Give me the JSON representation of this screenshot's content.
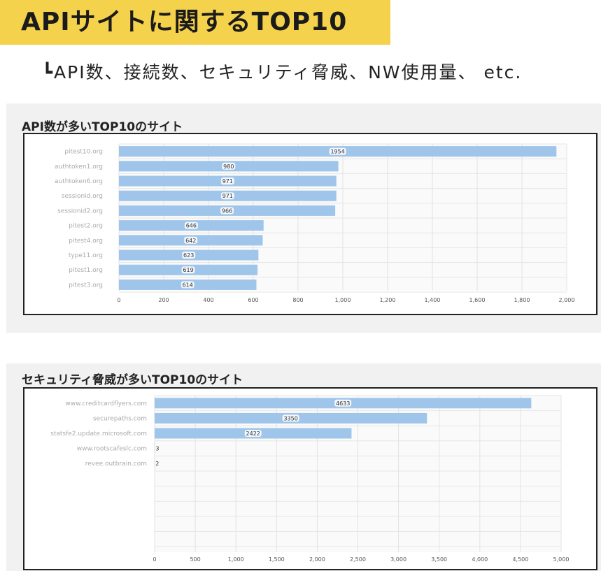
{
  "header": {
    "title": "APIサイトに関するTOP10",
    "subtitle": "┗API数、接続数、セキュリティ脅威、NW使用量、 etc."
  },
  "colors": {
    "banner": "#f5d24b",
    "bar": "#9fc5ea",
    "panel_bg": "#f1f1f1"
  },
  "chart_data": [
    {
      "type": "bar",
      "orientation": "horizontal",
      "title": "API数が多いTOP10のサイト",
      "categories": [
        "pitest10.org",
        "authtoken1.org",
        "authtoken6.org",
        "sessionid.org",
        "sessionid2.org",
        "pitest2.org",
        "pitest4.org",
        "type11.org",
        "pitest1.org",
        "pitest3.org"
      ],
      "values": [
        1954,
        980,
        971,
        971,
        966,
        646,
        642,
        623,
        619,
        614
      ],
      "data_labels": [
        "1954",
        "980",
        "971",
        "971",
        "966",
        "646",
        "642",
        "623",
        "619",
        "614"
      ],
      "xlim": [
        0,
        2000
      ],
      "x_ticks": [
        0,
        200,
        400,
        600,
        800,
        1000,
        1200,
        1400,
        1600,
        1800,
        2000
      ],
      "x_tick_labels": [
        "0",
        "200",
        "400",
        "600",
        "800",
        "1,000",
        "1,200",
        "1,400",
        "1,600",
        "1,800",
        "2,000"
      ],
      "grid": true
    },
    {
      "type": "bar",
      "orientation": "horizontal",
      "title": "セキュリティ脅威が多いTOP10のサイト",
      "categories": [
        "www.creditcardflyers.com",
        "securepaths.com",
        "statsfe2.update.microsoft.com",
        "www.rootscafeslc.com",
        "revee.outbrain.com"
      ],
      "values": [
        4633,
        3350,
        2422,
        3,
        2
      ],
      "data_labels": [
        "4633",
        "3350",
        "2422",
        "3",
        "2"
      ],
      "xlim": [
        0,
        5000
      ],
      "x_ticks": [
        0,
        500,
        1000,
        1500,
        2000,
        2500,
        3000,
        3500,
        4000,
        4500,
        5000
      ],
      "x_tick_labels": [
        "0",
        "500",
        "1,000",
        "1,500",
        "2,000",
        "2,500",
        "3,000",
        "3,500",
        "4,000",
        "4,500",
        "5,000"
      ],
      "grid": true
    }
  ]
}
